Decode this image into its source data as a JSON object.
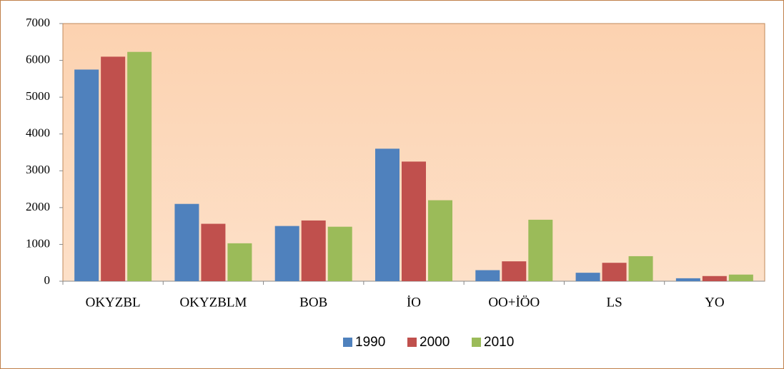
{
  "chart_data": {
    "type": "bar",
    "categories": [
      "OKYZBL",
      "OKYZBLM",
      "BOB",
      "İO",
      "OO+İÖO",
      "LS",
      "YO"
    ],
    "series": [
      {
        "name": "1990",
        "color": "#4f81bd",
        "values": [
          5750,
          2100,
          1500,
          3600,
          300,
          230,
          80
        ]
      },
      {
        "name": "2000",
        "color": "#c0504d",
        "values": [
          6100,
          1560,
          1650,
          3250,
          540,
          500,
          140
        ]
      },
      {
        "name": "2010",
        "color": "#9bbb59",
        "values": [
          6230,
          1030,
          1480,
          2200,
          1670,
          680,
          180
        ]
      }
    ],
    "ylim": [
      0,
      7000
    ],
    "yticks": [
      0,
      1000,
      2000,
      3000,
      4000,
      5000,
      6000,
      7000
    ],
    "legend": "bottom"
  }
}
